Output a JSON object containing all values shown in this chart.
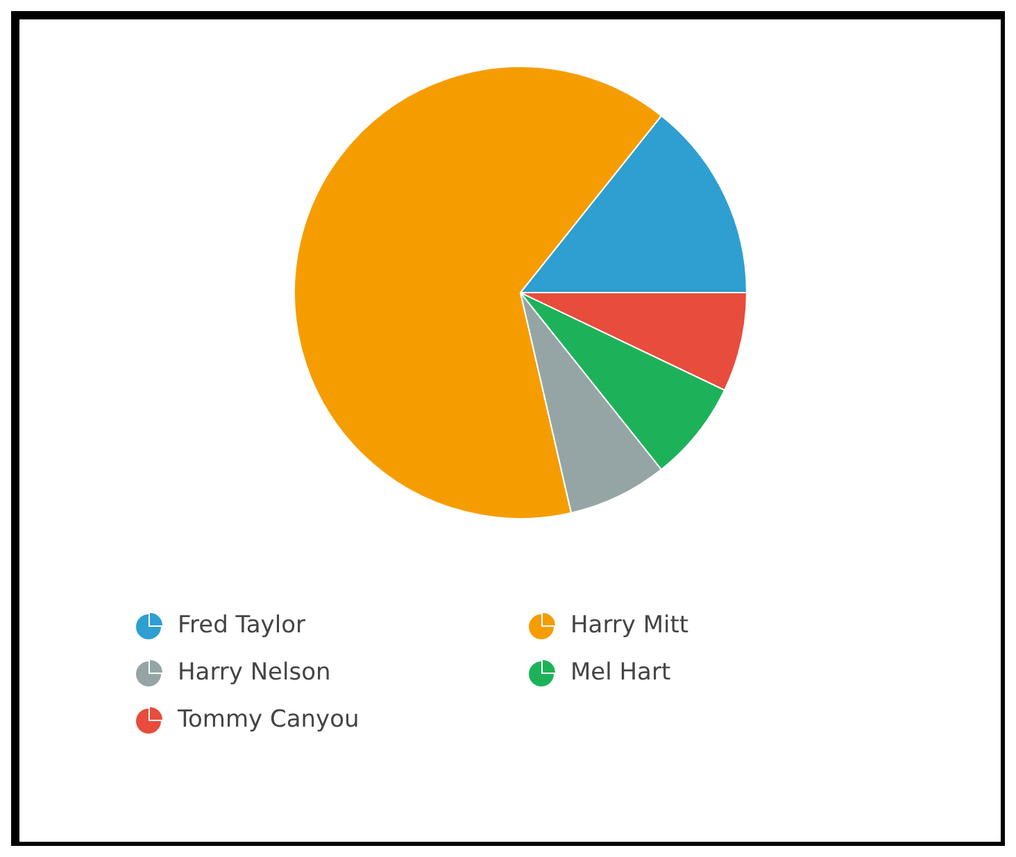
{
  "chart_data": {
    "type": "pie",
    "categories": [
      "Fred Taylor",
      "Harry Mitt",
      "Harry Nelson",
      "Mel Hart",
      "Tommy Canyou"
    ],
    "values": [
      14.3,
      64.3,
      7.1,
      7.2,
      7.1
    ],
    "colors": [
      "#2e9fd0",
      "#f59d00",
      "#95a5a6",
      "#1db25a",
      "#e74c3c"
    ],
    "legend": "bottom"
  }
}
